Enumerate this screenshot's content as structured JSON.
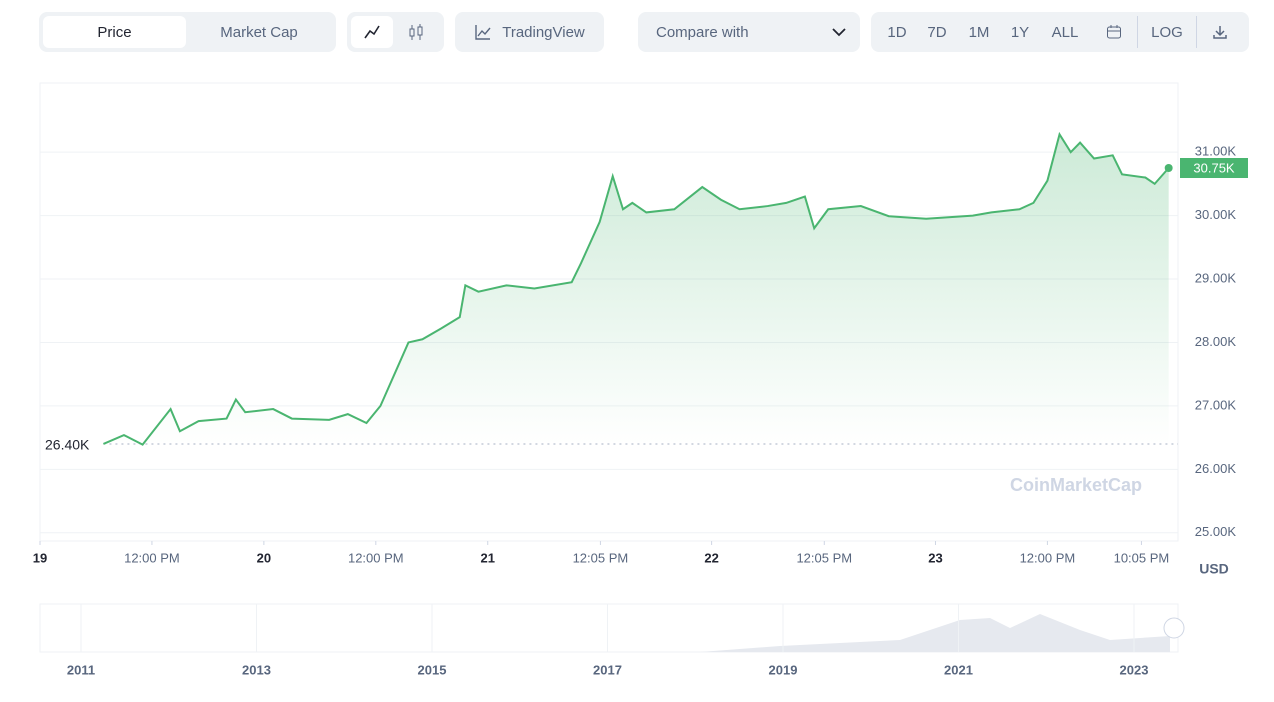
{
  "toolbar": {
    "tabs": [
      "Price",
      "Market Cap"
    ],
    "tradingview": "TradingView",
    "compare": "Compare with",
    "ranges": [
      "1D",
      "7D",
      "1M",
      "1Y",
      "ALL"
    ],
    "log": "LOG"
  },
  "watermark": "CoinMarketCap",
  "chart_data": {
    "type": "line",
    "unit": "USD",
    "color": "#4ab570",
    "x": [
      6.8,
      9,
      11,
      14,
      15,
      17,
      20,
      21,
      22,
      25,
      27,
      31,
      33,
      35,
      36.5,
      38,
      39.5,
      41,
      43,
      45,
      45.6,
      47,
      50,
      53,
      57,
      58,
      60,
      61.4,
      62.5,
      63.5,
      65,
      68,
      71,
      73,
      75,
      78,
      80,
      82,
      83,
      84.5,
      88,
      91,
      95,
      100,
      102,
      105,
      106.5,
      108,
      109.3,
      110.5,
      111.5,
      113,
      115,
      116,
      118.5,
      119.5,
      121
    ],
    "values": [
      26400,
      26540,
      26390,
      26950,
      26600,
      26760,
      26800,
      27100,
      26900,
      26950,
      26800,
      26780,
      26870,
      26730,
      27000,
      27500,
      28000,
      28050,
      28220,
      28400,
      28900,
      28800,
      28900,
      28850,
      28950,
      29250,
      29900,
      30620,
      30100,
      30200,
      30050,
      30100,
      30450,
      30250,
      30100,
      30150,
      30200,
      30300,
      29800,
      30100,
      30150,
      29990,
      29950,
      30000,
      30050,
      30100,
      30200,
      30550,
      31280,
      31000,
      31150,
      30900,
      30950,
      30650,
      30600,
      30500,
      30750
    ],
    "start_label": "26.40K",
    "current_label": "30.75K",
    "xlim": [
      0,
      122
    ],
    "xticks": [
      {
        "value": 0,
        "label": "19"
      },
      {
        "value": 12,
        "label": "12:00 PM"
      },
      {
        "value": 24,
        "label": "20"
      },
      {
        "value": 36,
        "label": "12:00 PM"
      },
      {
        "value": 48,
        "label": "21"
      },
      {
        "value": 60.08,
        "label": "12:05 PM"
      },
      {
        "value": 72,
        "label": "22"
      },
      {
        "value": 84.08,
        "label": "12:05 PM"
      },
      {
        "value": 96,
        "label": "23"
      },
      {
        "value": 108,
        "label": "12:00 PM"
      },
      {
        "value": 118.08,
        "label": "10:05 PM"
      }
    ],
    "ylim": [
      24870,
      32090
    ],
    "yticks": [
      {
        "value": 25000,
        "label": "25.00K"
      },
      {
        "value": 26000,
        "label": "26.00K"
      },
      {
        "value": 27000,
        "label": "27.00K"
      },
      {
        "value": 28000,
        "label": "28.00K"
      },
      {
        "value": 29000,
        "label": "29.00K"
      },
      {
        "value": 30000,
        "label": "30.00K"
      },
      {
        "value": 31000,
        "label": "31.00K"
      }
    ],
    "grid": true
  },
  "navigator": {
    "years": [
      "2011",
      "2013",
      "2015",
      "2017",
      "2019",
      "2021",
      "2023"
    ]
  }
}
